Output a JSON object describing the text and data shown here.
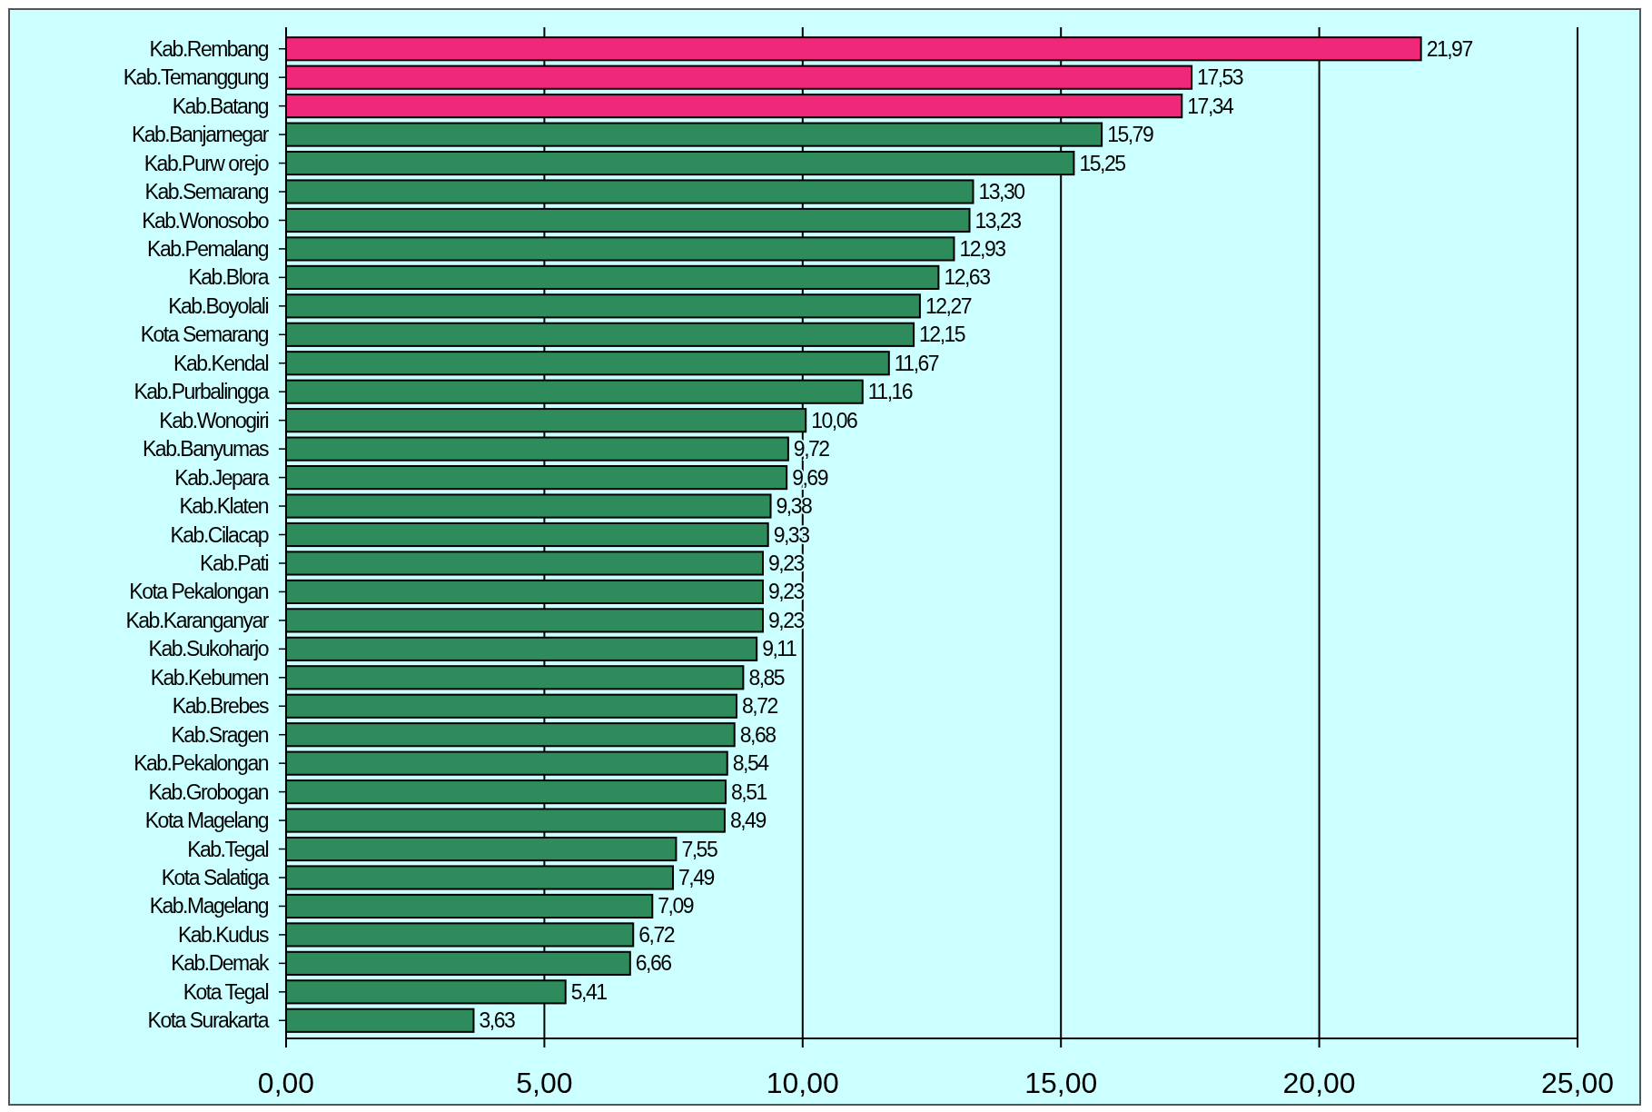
{
  "chart_data": {
    "type": "bar",
    "orientation": "horizontal",
    "categories": [
      "Kab.Rembang",
      "Kab.Temanggung",
      "Kab.Batang",
      "Kab.Banjarnegar",
      "Kab.Purw orejo",
      "Kab.Semarang",
      "Kab.Wonosobo",
      "Kab.Pemalang",
      "Kab.Blora",
      "Kab.Boyolali",
      "Kota Semarang",
      "Kab.Kendal",
      "Kab.Purbalingga",
      "Kab.Wonogiri",
      "Kab.Banyumas",
      "Kab.Jepara",
      "Kab.Klaten",
      "Kab.Cilacap",
      "Kab.Pati",
      "Kota Pekalongan",
      "Kab.Karanganyar",
      "Kab.Sukoharjo",
      "Kab.Kebumen",
      "Kab.Brebes",
      "Kab.Sragen",
      "Kab.Pekalongan",
      "Kab.Grobogan",
      "Kota Magelang",
      "Kab.Tegal",
      "Kota Salatiga",
      "Kab.Magelang",
      "Kab.Kudus",
      "Kab.Demak",
      "Kota Tegal",
      "Kota Surakarta"
    ],
    "values": [
      21.97,
      17.53,
      17.34,
      15.79,
      15.25,
      13.3,
      13.23,
      12.93,
      12.63,
      12.27,
      12.15,
      11.67,
      11.16,
      10.06,
      9.72,
      9.69,
      9.38,
      9.33,
      9.23,
      9.23,
      9.23,
      9.11,
      8.85,
      8.72,
      8.68,
      8.54,
      8.51,
      8.49,
      7.55,
      7.49,
      7.09,
      6.72,
      6.66,
      5.41,
      3.63
    ],
    "value_labels": [
      "21,97",
      "17,53",
      "17,34",
      "15,79",
      "15,25",
      "13,30",
      "13,23",
      "12,93",
      "12,63",
      "12,27",
      "12,15",
      "11,67",
      "11,16",
      "10,06",
      "9,72",
      "9,69",
      "9,38",
      "9,33",
      "9,23",
      "9,23",
      "9,23",
      "9,11",
      "8,85",
      "8,72",
      "8,68",
      "8,54",
      "8,51",
      "8,49",
      "7,55",
      "7,49",
      "7,09",
      "6,72",
      "6,66",
      "5,41",
      "3,63"
    ],
    "colors": [
      "#f0287a",
      "#f0287a",
      "#f0287a",
      "#2e8b5c",
      "#2e8b5c",
      "#2e8b5c",
      "#2e8b5c",
      "#2e8b5c",
      "#2e8b5c",
      "#2e8b5c",
      "#2e8b5c",
      "#2e8b5c",
      "#2e8b5c",
      "#2e8b5c",
      "#2e8b5c",
      "#2e8b5c",
      "#2e8b5c",
      "#2e8b5c",
      "#2e8b5c",
      "#2e8b5c",
      "#2e8b5c",
      "#2e8b5c",
      "#2e8b5c",
      "#2e8b5c",
      "#2e8b5c",
      "#2e8b5c",
      "#2e8b5c",
      "#2e8b5c",
      "#2e8b5c",
      "#2e8b5c",
      "#2e8b5c",
      "#2e8b5c",
      "#2e8b5c",
      "#2e8b5c",
      "#2e8b5c"
    ],
    "xlim": [
      0,
      25
    ],
    "xticks": [
      {
        "value": 0,
        "label": "0,00"
      },
      {
        "value": 5,
        "label": "5,00"
      },
      {
        "value": 10,
        "label": "10,00"
      },
      {
        "value": 15,
        "label": "15,00"
      },
      {
        "value": 20,
        "label": "20,00"
      },
      {
        "value": 25,
        "label": "25,00"
      }
    ],
    "grid": "x"
  }
}
